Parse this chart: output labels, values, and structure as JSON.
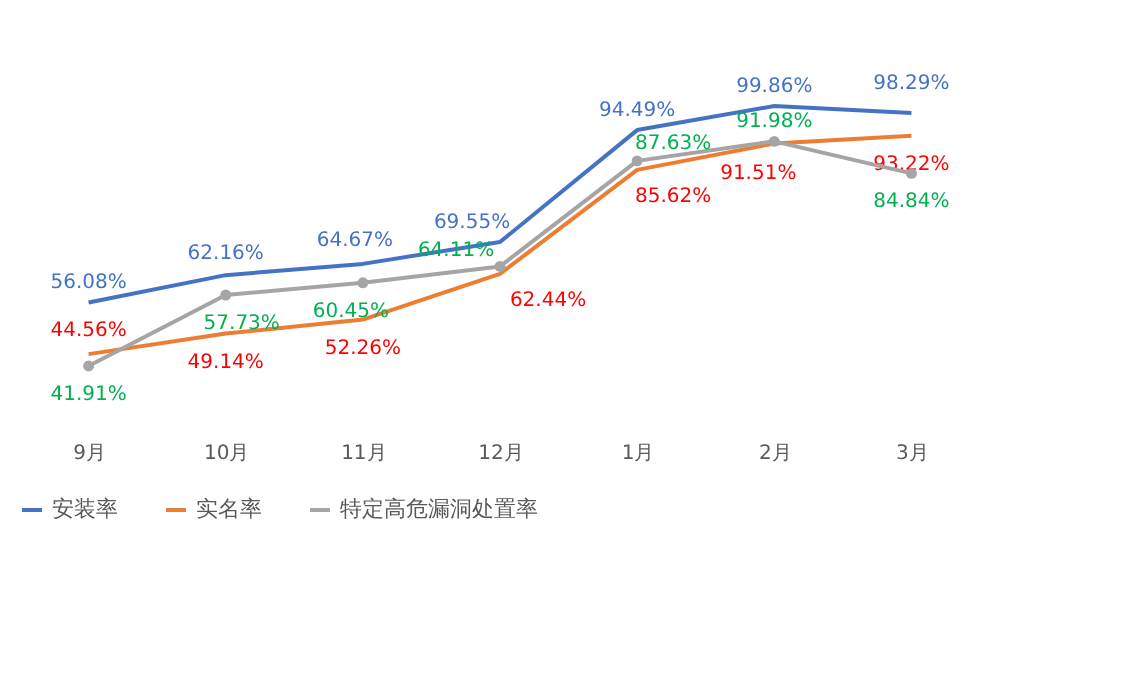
{
  "chart_data": {
    "type": "line",
    "categories": [
      "9月",
      "10月",
      "11月",
      "12月",
      "1月",
      "2月",
      "3月"
    ],
    "tick_labels": "x",
    "grid": false,
    "legend": "bottom",
    "marker": "none",
    "series": [
      {
        "name": "安装率",
        "color": "#4472c4",
        "values": [
          56.08,
          62.16,
          64.67,
          69.55,
          94.49,
          99.86,
          98.29
        ],
        "value_labels": [
          "56.08%",
          "62.16%",
          "64.67%",
          "69.55%",
          "94.49%",
          "99.86%",
          "98.29%"
        ]
      },
      {
        "name": "实名率",
        "color": "#ed7d31",
        "values": [
          44.56,
          49.14,
          52.26,
          62.44,
          85.62,
          91.51,
          93.22
        ],
        "value_labels": [
          "44.56%",
          "49.14%",
          "52.26%",
          "62.44%",
          "85.62%",
          "91.51%",
          "93.22%"
        ]
      },
      {
        "name": "特定高危漏洞处置率",
        "color": "#a5a5a5",
        "marker": "circle",
        "values": [
          41.91,
          57.73,
          60.45,
          64.11,
          87.63,
          91.98,
          84.84
        ],
        "value_labels": [
          "41.91%",
          "57.73%",
          "60.45%",
          "64.11%",
          "87.63%",
          "91.98%",
          "84.84%"
        ]
      }
    ]
  }
}
